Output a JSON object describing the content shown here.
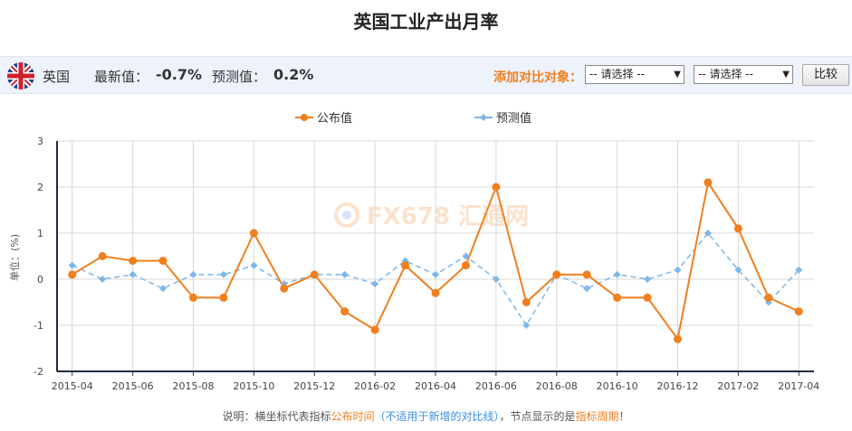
{
  "page_title": "英国工业产出月率",
  "infobar": {
    "country": "英国",
    "latest_label": "最新值：",
    "latest_value": "-0.7%",
    "forecast_label": "预测值：",
    "forecast_value": "0.2%",
    "compare_label": "添加对比对象：",
    "select1_value": "-- 请选择 --",
    "select2_value": "-- 请选择 --",
    "compare_button": "比较"
  },
  "icons": {
    "flag": "uk-flag-icon",
    "dropdown": "dropdown-arrow-icon"
  },
  "colors": {
    "published": "#f07f1e",
    "forecast": "#7eb6e8",
    "accent": "#f07f1e"
  },
  "watermark": "FX678 汇通网",
  "footer": {
    "prefix": "说明：横坐标代表指标",
    "part1": "公布时间",
    "part2": "（不适用于新增的对比线）",
    "part3": "，节点显示的是",
    "part4": "指标周期",
    "suffix": "！"
  },
  "chart_data": {
    "type": "line",
    "ylabel": "单位：(%)",
    "ylim": [
      -2,
      3
    ],
    "yticks": [
      "3",
      "2",
      "1",
      "0",
      "-1",
      "-2"
    ],
    "x": [
      "2015-04",
      "2015-05",
      "2015-06",
      "2015-07",
      "2015-08",
      "2015-09",
      "2015-10",
      "2015-11",
      "2015-12",
      "2016-01",
      "2016-02",
      "2016-03",
      "2016-04",
      "2016-05",
      "2016-06",
      "2016-07",
      "2016-08",
      "2016-09",
      "2016-10",
      "2016-11",
      "2016-12",
      "2017-01",
      "2017-02",
      "2017-03",
      "2017-04"
    ],
    "xtick_labels": [
      "2015-04",
      "2015-06",
      "2015-08",
      "2015-10",
      "2015-12",
      "2016-02",
      "2016-04",
      "2016-06",
      "2016-08",
      "2016-10",
      "2016-12",
      "2017-02",
      "2017-04"
    ],
    "series": [
      {
        "name": "公布值",
        "values": [
          0.1,
          0.5,
          0.4,
          0.4,
          -0.4,
          -0.4,
          1.0,
          -0.2,
          0.1,
          -0.7,
          -1.1,
          0.3,
          -0.3,
          0.3,
          2.0,
          -0.5,
          0.1,
          0.1,
          -0.4,
          -0.4,
          -1.3,
          2.1,
          1.1,
          -0.4,
          -0.7
        ]
      },
      {
        "name": "预测值",
        "values": [
          0.3,
          0.0,
          0.1,
          -0.2,
          0.1,
          0.1,
          0.3,
          -0.1,
          0.1,
          0.1,
          -0.1,
          0.4,
          0.1,
          0.5,
          0.0,
          -1.0,
          0.1,
          -0.2,
          0.1,
          0.0,
          0.2,
          1.0,
          0.2,
          -0.5,
          0.2
        ]
      }
    ],
    "grid": true,
    "legend_position": "top"
  }
}
